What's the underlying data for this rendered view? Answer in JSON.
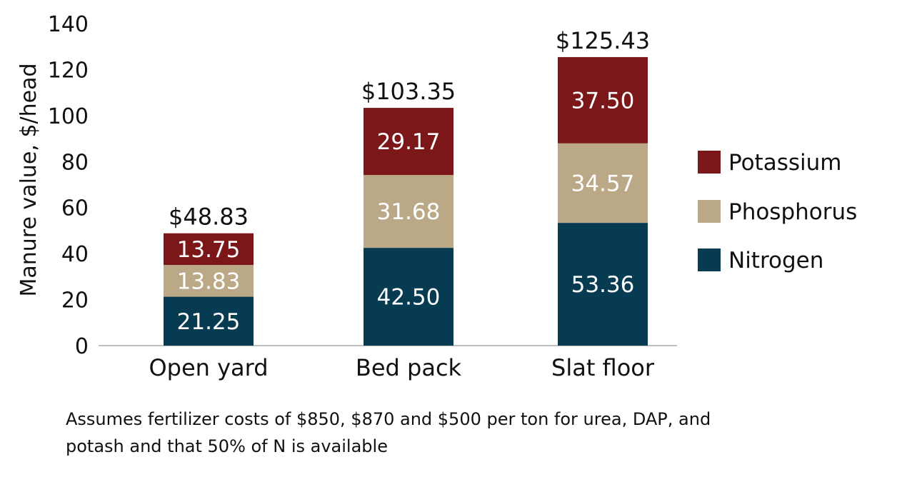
{
  "chart_data": {
    "type": "bar",
    "stacked": true,
    "categories": [
      "Open yard",
      "Bed pack",
      "Slat floor"
    ],
    "series": [
      {
        "name": "Nitrogen",
        "color": "#073b52",
        "values": [
          21.25,
          42.5,
          53.36
        ],
        "labels": [
          "21.25",
          "42.50",
          "53.36"
        ]
      },
      {
        "name": "Phosphorus",
        "color": "#bba887",
        "values": [
          13.83,
          31.68,
          34.57
        ],
        "labels": [
          "13.83",
          "31.68",
          "34.57"
        ]
      },
      {
        "name": "Potassium",
        "color": "#7c1719",
        "values": [
          13.75,
          29.17,
          37.5
        ],
        "labels": [
          "13.75",
          "29.17",
          "37.50"
        ]
      }
    ],
    "totals": [
      "$48.83",
      "$103.35",
      "$125.43"
    ],
    "ylabel": "Manure value, $/head",
    "xlabel": "",
    "ylim": [
      0,
      140
    ],
    "yticks": [
      0,
      20,
      40,
      60,
      80,
      100,
      120,
      140
    ],
    "legend_position": "right",
    "legend_order": [
      "Potassium",
      "Phosphorus",
      "Nitrogen"
    ],
    "grid": false
  },
  "footnote": {
    "line1": "Assumes fertilizer costs of $850, $870 and $500 per ton for urea, DAP, and",
    "line2": "potash and that 50% of N is available"
  }
}
